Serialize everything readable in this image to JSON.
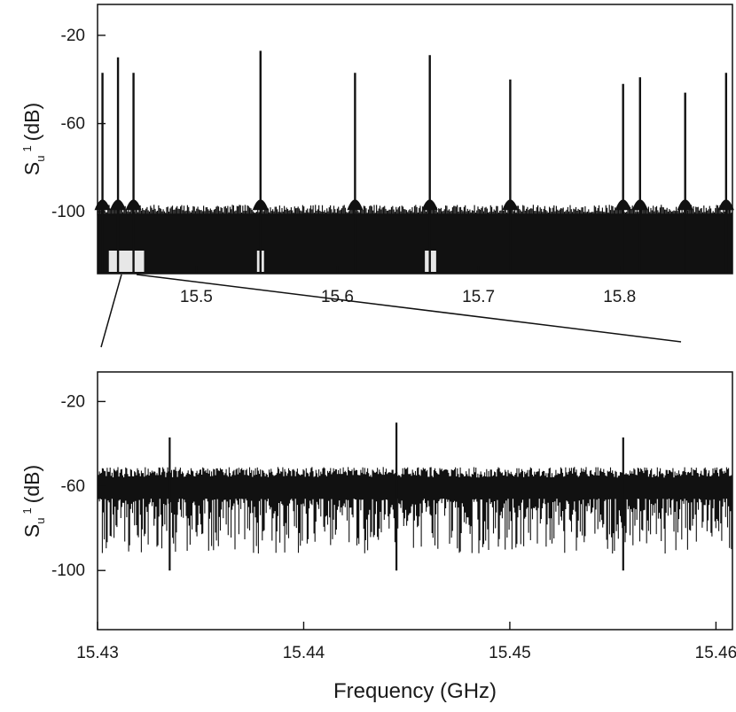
{
  "chart_data": [
    {
      "type": "line",
      "panel": "top",
      "xlabel": "",
      "ylabel_main": "S",
      "ylabel_sub": "u",
      "ylabel_sup": "1",
      "ylabel_unit": "(dB)",
      "xlim": [
        15.43,
        15.88
      ],
      "ylim": [
        -128,
        -6
      ],
      "xticks": [
        15.5,
        15.6,
        15.7,
        15.8
      ],
      "xtick_labels": [
        "15.5",
        "15.6",
        "15.7",
        "15.8"
      ],
      "yticks": [
        -20,
        -60,
        -100
      ],
      "ytick_labels": [
        "-20",
        "-60",
        "-100"
      ],
      "noise_floor_db": -100,
      "peaks": [
        {
          "x": 15.4335,
          "y": -37
        },
        {
          "x": 15.4445,
          "y": -30
        },
        {
          "x": 15.4555,
          "y": -37
        },
        {
          "x": 15.5455,
          "y": -27
        },
        {
          "x": 15.6125,
          "y": -37
        },
        {
          "x": 15.6655,
          "y": -29
        },
        {
          "x": 15.7225,
          "y": -40
        },
        {
          "x": 15.8025,
          "y": -42
        },
        {
          "x": 15.8145,
          "y": -39
        },
        {
          "x": 15.8465,
          "y": -46
        },
        {
          "x": 15.8755,
          "y": -37
        }
      ],
      "dip_regions": [
        [
          15.438,
          15.463
        ],
        [
          15.543,
          15.548
        ],
        [
          15.662,
          15.67
        ]
      ]
    },
    {
      "type": "line",
      "panel": "bottom",
      "xlabel": "Frequency (GHz)",
      "ylabel_main": "S",
      "ylabel_sub": "u",
      "ylabel_sup": "1",
      "ylabel_unit": "(dB)",
      "xlim": [
        15.43,
        15.4608
      ],
      "ylim": [
        -128,
        -6
      ],
      "xticks": [
        15.43,
        15.44,
        15.45,
        15.46
      ],
      "xtick_labels": [
        "15.43",
        "15.44",
        "15.45",
        "15.46"
      ],
      "yticks": [
        -20,
        -60,
        -100
      ],
      "ytick_labels": [
        "-20",
        "-60",
        "-100"
      ],
      "noise_floor_db": -100,
      "peaks": [
        {
          "x": 15.4335,
          "y": -37
        },
        {
          "x": 15.4445,
          "y": -30
        },
        {
          "x": 15.4555,
          "y": -37
        }
      ]
    }
  ]
}
